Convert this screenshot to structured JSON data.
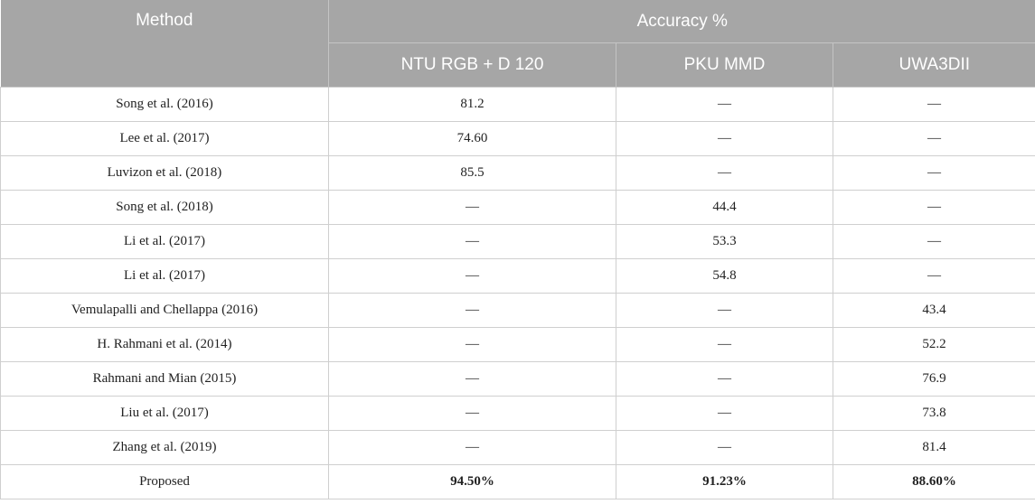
{
  "header": {
    "method": "Method",
    "accuracy": "Accuracy %",
    "columns": [
      "NTU RGB + D 120",
      "PKU MMD",
      "UWA3DII"
    ]
  },
  "rows": [
    {
      "method": "Song et al. (2016)",
      "values": [
        "81.2",
        "—",
        "—"
      ]
    },
    {
      "method": "Lee et al. (2017)",
      "values": [
        "74.60",
        "—",
        "—"
      ]
    },
    {
      "method": "Luvizon et al. (2018)",
      "values": [
        "85.5",
        "—",
        "—"
      ]
    },
    {
      "method": "Song et al. (2018)",
      "values": [
        "—",
        "44.4",
        "—"
      ]
    },
    {
      "method": "Li et al. (2017)",
      "values": [
        "—",
        "53.3",
        "—"
      ]
    },
    {
      "method": "Li et al. (2017)",
      "values": [
        "—",
        "54.8",
        "—"
      ]
    },
    {
      "method": "Vemulapalli and Chellappa (2016)",
      "values": [
        "—",
        "—",
        "43.4"
      ]
    },
    {
      "method": "H. Rahmani et al. (2014)",
      "values": [
        "—",
        "—",
        "52.2"
      ]
    },
    {
      "method": "Rahmani and Mian (2015)",
      "values": [
        "—",
        "—",
        "76.9"
      ]
    },
    {
      "method": "Liu et al. (2017)",
      "values": [
        "—",
        "—",
        "73.8"
      ]
    },
    {
      "method": "Zhang et al. (2019)",
      "values": [
        "—",
        "—",
        "81.4"
      ]
    },
    {
      "method": "Proposed",
      "values": [
        "94.50%",
        "91.23%",
        "88.60%"
      ]
    }
  ]
}
